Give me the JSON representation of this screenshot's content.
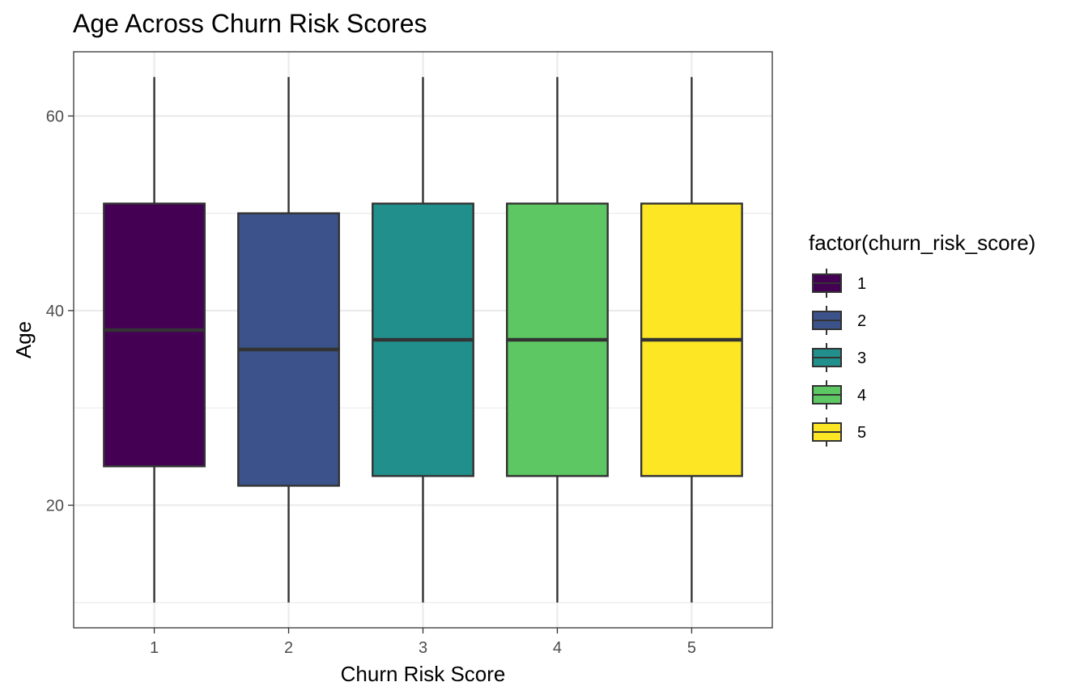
{
  "chart_data": {
    "type": "boxplot",
    "title": "Age Across Churn Risk Scores",
    "xlabel": "Churn Risk Score",
    "ylabel": "Age",
    "categories": [
      "1",
      "2",
      "3",
      "4",
      "5"
    ],
    "yticks": [
      20,
      40,
      60
    ],
    "ylim": [
      7.4,
      66.6
    ],
    "grid": true,
    "legend": {
      "title": "factor(churn_risk_score)",
      "position": "right",
      "entries": [
        "1",
        "2",
        "3",
        "4",
        "5"
      ]
    },
    "boxes": [
      {
        "category": "1",
        "min": 10,
        "q1": 24,
        "median": 38,
        "q3": 51,
        "max": 64,
        "color": "#440154"
      },
      {
        "category": "2",
        "min": 10,
        "q1": 22,
        "median": 36,
        "q3": 50,
        "max": 64,
        "color": "#3B528B"
      },
      {
        "category": "3",
        "min": 10,
        "q1": 23,
        "median": 37,
        "q3": 51,
        "max": 64,
        "color": "#21908C"
      },
      {
        "category": "4",
        "min": 10,
        "q1": 23,
        "median": 37,
        "q3": 51,
        "max": 64,
        "color": "#5DC863"
      },
      {
        "category": "5",
        "min": 10,
        "q1": 23,
        "median": 37,
        "q3": 51,
        "max": 64,
        "color": "#FDE725"
      }
    ]
  }
}
